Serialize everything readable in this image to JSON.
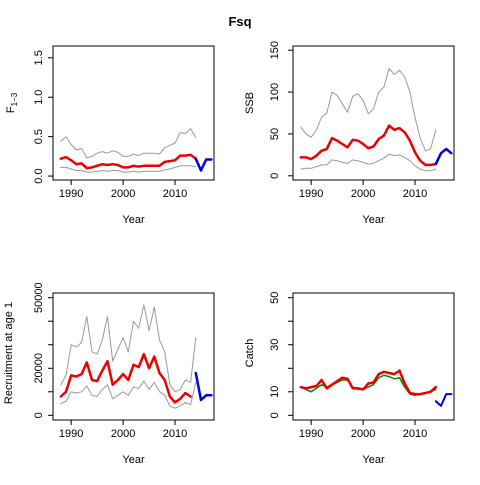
{
  "figure": {
    "title": "Fsq"
  },
  "chart_data": [
    {
      "id": "F",
      "type": "line",
      "xlabel": "Year",
      "ylabel": "F",
      "ylabel_sub": "1−3",
      "xlim": [
        1986.5,
        2017.5
      ],
      "ylim": [
        -0.05,
        1.65
      ],
      "xticks": [
        1990,
        2000,
        2010
      ],
      "yticks": [
        0.0,
        0.5,
        1.0,
        1.5
      ],
      "ytick_labels": [
        "0.0",
        "0.5",
        "1.0",
        "1.5"
      ],
      "series": [
        {
          "role": "upper",
          "color": "#999999",
          "width": 1,
          "x": [
            1988,
            1989,
            1990,
            1991,
            1992,
            1993,
            1994,
            1995,
            1996,
            1997,
            1998,
            1999,
            2000,
            2001,
            2002,
            2003,
            2004,
            2005,
            2006,
            2007,
            2008,
            2009,
            2010,
            2011,
            2012,
            2013
          ],
          "y": [
            0.44,
            0.5,
            0.4,
            0.33,
            0.35,
            0.23,
            0.25,
            0.29,
            0.31,
            0.29,
            0.32,
            0.3,
            0.25,
            0.25,
            0.28,
            0.26,
            0.29,
            0.29,
            0.29,
            0.28,
            0.36,
            0.39,
            0.42,
            0.55,
            0.54,
            0.6
          ]
        },
        {
          "role": "upper-tail",
          "color": "#999999",
          "width": 1,
          "x": [
            2013,
            2014
          ],
          "y": [
            0.6,
            0.49
          ]
        },
        {
          "role": "lower",
          "color": "#999999",
          "width": 1,
          "x": [
            1988,
            1989,
            1990,
            1991,
            1992,
            1993,
            1994,
            1995,
            1996,
            1997,
            1998,
            1999,
            2000,
            2001,
            2002,
            2003,
            2004,
            2005,
            2006,
            2007,
            2008,
            2009,
            2010,
            2011,
            2012,
            2013,
            2014
          ],
          "y": [
            0.11,
            0.11,
            0.09,
            0.07,
            0.07,
            0.05,
            0.05,
            0.06,
            0.07,
            0.06,
            0.07,
            0.07,
            0.05,
            0.05,
            0.06,
            0.05,
            0.06,
            0.06,
            0.06,
            0.06,
            0.08,
            0.09,
            0.11,
            0.13,
            0.13,
            0.13,
            0.12
          ]
        },
        {
          "role": "estimate",
          "color": "#ee0000",
          "width": 2.5,
          "x": [
            1988,
            1989,
            1990,
            1991,
            1992,
            1993,
            1994,
            1995,
            1996,
            1997,
            1998,
            1999,
            2000,
            2001,
            2002,
            2003,
            2004,
            2005,
            2006,
            2007,
            2008,
            2009,
            2010,
            2011,
            2012,
            2013,
            2014
          ],
          "y": [
            0.22,
            0.24,
            0.2,
            0.15,
            0.16,
            0.1,
            0.11,
            0.13,
            0.15,
            0.14,
            0.15,
            0.14,
            0.11,
            0.11,
            0.13,
            0.12,
            0.13,
            0.13,
            0.13,
            0.13,
            0.18,
            0.19,
            0.2,
            0.26,
            0.26,
            0.27,
            0.22
          ]
        },
        {
          "role": "forecast",
          "color": "#0000dd",
          "width": 2.5,
          "x": [
            2014,
            2015,
            2016,
            2017
          ],
          "y": [
            0.22,
            0.07,
            0.21,
            0.21
          ]
        }
      ]
    },
    {
      "id": "SSB",
      "type": "line",
      "xlabel": "Year",
      "ylabel": "SSB",
      "xlim": [
        1986.5,
        2017.5
      ],
      "ylim": [
        -5,
        155
      ],
      "xticks": [
        1990,
        2000,
        2010
      ],
      "yticks": [
        0,
        50,
        100,
        150
      ],
      "ytick_labels": [
        "0",
        "50",
        "100",
        "150"
      ],
      "series": [
        {
          "role": "upper",
          "color": "#999999",
          "width": 1,
          "x": [
            1988,
            1989,
            1990,
            1991,
            1992,
            1993,
            1994,
            1995,
            1996,
            1997,
            1998,
            1999,
            2000,
            2001,
            2002,
            2003,
            2004,
            2005,
            2006,
            2007,
            2008,
            2009,
            2010,
            2011,
            2012,
            2013,
            2014
          ],
          "y": [
            58,
            50,
            46,
            55,
            70,
            75,
            100,
            96,
            86,
            76,
            95,
            98,
            90,
            74,
            80,
            100,
            106,
            128,
            121,
            126,
            118,
            100,
            70,
            45,
            30,
            32,
            55
          ]
        },
        {
          "role": "lower",
          "color": "#999999",
          "width": 1,
          "x": [
            1988,
            1989,
            1990,
            1991,
            1992,
            1993,
            1994,
            1995,
            1996,
            1997,
            1998,
            1999,
            2000,
            2001,
            2002,
            2003,
            2004,
            2005,
            2006,
            2007,
            2008,
            2009,
            2010,
            2011,
            2012,
            2013,
            2014
          ],
          "y": [
            8,
            9,
            9,
            11,
            13,
            13,
            19,
            18,
            16,
            15,
            19,
            18,
            16,
            14,
            15,
            18,
            21,
            26,
            24,
            25,
            22,
            18,
            12,
            8,
            6,
            6,
            8
          ]
        },
        {
          "role": "estimate",
          "color": "#ee0000",
          "width": 2.5,
          "x": [
            1988,
            1989,
            1990,
            1991,
            1992,
            1993,
            1994,
            1995,
            1996,
            1997,
            1998,
            1999,
            2000,
            2001,
            2002,
            2003,
            2004,
            2005,
            2006,
            2007,
            2008,
            2009,
            2010,
            2011,
            2012,
            2013,
            2014
          ],
          "y": [
            22,
            22,
            20,
            24,
            30,
            32,
            45,
            42,
            38,
            34,
            43,
            42,
            38,
            33,
            35,
            44,
            48,
            60,
            55,
            57,
            52,
            42,
            28,
            18,
            13,
            13,
            14
          ]
        },
        {
          "role": "forecast",
          "color": "#0000dd",
          "width": 2.5,
          "x": [
            2014,
            2015,
            2016,
            2017
          ],
          "y": [
            14,
            27,
            32,
            27
          ]
        }
      ]
    },
    {
      "id": "Recruitment",
      "type": "line",
      "xlabel": "Year",
      "ylabel": "Recruitment at age 1",
      "xlim": [
        1986.5,
        2017.5
      ],
      "ylim": [
        -2000,
        52000
      ],
      "xticks": [
        1990,
        2000,
        2010
      ],
      "yticks": [
        0,
        10000,
        20000,
        30000,
        40000,
        50000
      ],
      "ytick_labels": [
        "0",
        "",
        "20000",
        "",
        "",
        "50000"
      ],
      "series": [
        {
          "role": "upper",
          "color": "#999999",
          "width": 1,
          "x": [
            1988,
            1989,
            1990,
            1991,
            1992,
            1993,
            1994,
            1995,
            1996,
            1997,
            1998,
            1999,
            2000,
            2001,
            2002,
            2003,
            2004,
            2005,
            2006,
            2007,
            2008,
            2009,
            2010,
            2011,
            2012,
            2013,
            2014
          ],
          "y": [
            13000,
            17000,
            30000,
            29000,
            31000,
            42000,
            27000,
            26000,
            32000,
            42000,
            23000,
            28000,
            33000,
            27000,
            40000,
            37000,
            47000,
            36000,
            46000,
            32000,
            27000,
            13000,
            10000,
            11000,
            15000,
            14000,
            33000
          ]
        },
        {
          "role": "lower",
          "color": "#999999",
          "width": 1,
          "x": [
            1988,
            1989,
            1990,
            1991,
            1992,
            1993,
            1994,
            1995,
            1996,
            1997,
            1998,
            1999,
            2000,
            2001,
            2002,
            2003,
            2004,
            2005,
            2006,
            2007,
            2008,
            2009,
            2010,
            2011,
            2012,
            2013,
            2014
          ],
          "y": [
            5000,
            6000,
            10000,
            9500,
            10000,
            12500,
            8500,
            8000,
            11000,
            13000,
            7000,
            8500,
            10000,
            8500,
            12000,
            11500,
            14500,
            11000,
            14000,
            10000,
            8500,
            4000,
            3000,
            4000,
            5500,
            4500,
            14000
          ]
        },
        {
          "role": "estimate",
          "color": "#ee0000",
          "width": 2.5,
          "x": [
            1988,
            1989,
            1990,
            1991,
            1992,
            1993,
            1994,
            1995,
            1996,
            1997,
            1998,
            1999,
            2000,
            2001,
            2002,
            2003,
            2004,
            2005,
            2006,
            2007,
            2008,
            2009,
            2010,
            2011,
            2012,
            2013
          ],
          "y": [
            8000,
            10000,
            17000,
            16500,
            17500,
            22500,
            15000,
            14500,
            19000,
            23000,
            13000,
            15000,
            17500,
            15000,
            21500,
            20500,
            26000,
            20000,
            25000,
            18000,
            15000,
            8000,
            5500,
            7000,
            9500,
            8000
          ]
        },
        {
          "role": "forecast",
          "color": "#0000dd",
          "width": 2.5,
          "x": [
            2014,
            2015,
            2016,
            2017
          ],
          "y": [
            18000,
            6500,
            8500,
            8500
          ]
        }
      ]
    },
    {
      "id": "Catch",
      "type": "line",
      "xlabel": "Year",
      "ylabel": "Catch",
      "xlim": [
        1986.5,
        2017.5
      ],
      "ylim": [
        -2,
        52
      ],
      "xticks": [
        1990,
        2000,
        2010
      ],
      "yticks": [
        0,
        10,
        20,
        30,
        40,
        50
      ],
      "ytick_labels": [
        "0",
        "10",
        "",
        "30",
        "",
        "50"
      ],
      "series": [
        {
          "role": "observed",
          "color": "#008800",
          "width": 1.5,
          "x": [
            1988,
            1989,
            1990,
            1991,
            1992,
            1993,
            1994,
            1995,
            1996,
            1997,
            1998,
            1999,
            2000,
            2001,
            2002,
            2003,
            2004,
            2005,
            2006,
            2007,
            2008,
            2009,
            2010,
            2011,
            2012,
            2013,
            2014
          ],
          "y": [
            12,
            11,
            10,
            11.5,
            13,
            12,
            13,
            14,
            15,
            15,
            12,
            11,
            11,
            12,
            13,
            16,
            17,
            16.5,
            15.5,
            16,
            12,
            9,
            8.5,
            9,
            9.5,
            10,
            11
          ]
        },
        {
          "role": "estimate",
          "color": "#ee0000",
          "width": 2.5,
          "x": [
            1988,
            1989,
            1990,
            1991,
            1992,
            1993,
            1994,
            1995,
            1996,
            1997,
            1998,
            1999,
            2000,
            2001,
            2002,
            2003,
            2004,
            2005,
            2006,
            2007,
            2008,
            2009,
            2010,
            2011,
            2012,
            2013,
            2014
          ],
          "y": [
            12,
            11.5,
            12,
            12.5,
            15,
            11.5,
            13,
            14.5,
            16,
            15.5,
            11.5,
            11.5,
            11,
            13.5,
            14,
            17.5,
            18.5,
            18,
            17.5,
            19,
            13.5,
            9.5,
            9,
            9,
            9.5,
            10,
            12
          ]
        },
        {
          "role": "forecast",
          "color": "#0000dd",
          "width": 2,
          "x": [
            2014,
            2015,
            2016,
            2017
          ],
          "y": [
            6,
            4,
            9,
            9
          ]
        }
      ]
    }
  ]
}
